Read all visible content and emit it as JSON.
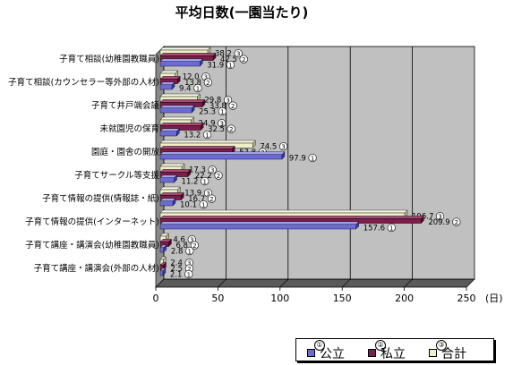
{
  "chart_data": {
    "type": "bar",
    "orientation": "horizontal",
    "title": "平均日数(一園当たり)",
    "unit_label": "(日)",
    "categories": [
      "子育て相談(幼稚園教職員)",
      "子育て相談(カウンセラー等外部の人材)",
      "子育て井戸端会議",
      "未就園児の保育",
      "園庭・園舎の開放",
      "子育てサークル等支援",
      "子育て情報の提供(情報誌・紙)",
      "子育て情報の提供(インターネット)",
      "子育て講座・講演会(幼稚園教職員)",
      "子育て講座・講演会(外部の人材)"
    ],
    "series": [
      {
        "name": "公立",
        "marker": "①",
        "color": "#6b6bd6",
        "values": [
          31.9,
          9.4,
          25.3,
          13.2,
          97.9,
          11.2,
          10.1,
          157.6,
          2.8,
          2.1
        ],
        "labels": [
          "31.9",
          "9.4",
          "25.3",
          "13.2",
          "97.9",
          "11.2",
          "10.1",
          "157.6",
          "2.8",
          "2.1"
        ]
      },
      {
        "name": "私立",
        "marker": "②",
        "color": "#7a1f4a",
        "values": [
          42.5,
          13.8,
          33.8,
          32.5,
          57.8,
          22.2,
          16.7,
          209.9,
          6.8,
          2.5
        ],
        "labels": [
          "42.5",
          "13.8",
          "33.8",
          "32.5",
          "57.8",
          "22.2",
          "16.7",
          "209.9",
          "6.8",
          "2.5"
        ]
      },
      {
        "name": "合計",
        "marker": "③",
        "color": "#eeeec8",
        "values": [
          38.2,
          12.0,
          29.8,
          24.9,
          74.5,
          17.3,
          13.9,
          196.7,
          4.6,
          2.4
        ],
        "labels": [
          "38.2",
          "12.0",
          "29.8",
          "24.9",
          "74.5",
          "17.3",
          "13.9",
          "196.7",
          "4.6",
          "2.4"
        ]
      }
    ],
    "xlim": [
      0,
      250
    ],
    "xticks": [
      "0",
      "50",
      "100",
      "150",
      "200",
      "250"
    ],
    "grid": true,
    "legend_position": "bottom-right",
    "plot_background": "#c0c0c0"
  }
}
